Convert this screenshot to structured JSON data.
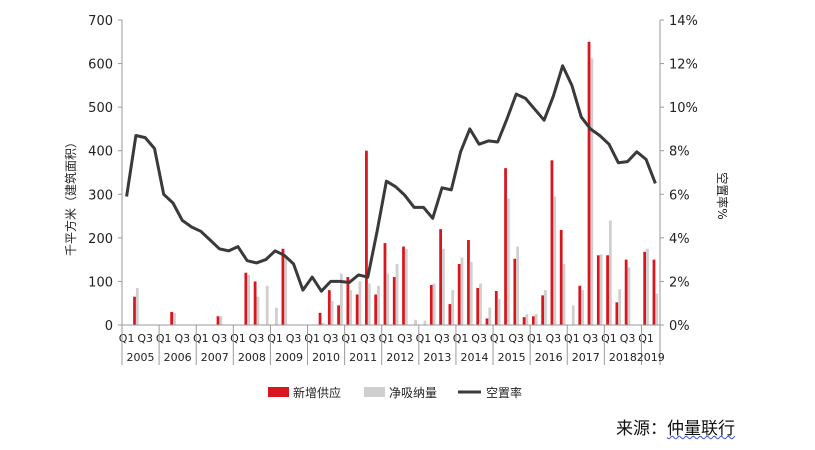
{
  "source": {
    "prefix": "来源：",
    "name": "仲量联行"
  },
  "colors": {
    "supply": "#d7161e",
    "absorption": "#cfcfcf",
    "vacancy": "#3a3a3a"
  },
  "chart_data": {
    "type": "bar",
    "title": "",
    "ylabel": "千平方米（建筑面积）",
    "y2label": "空置率%",
    "ylim": [
      0,
      700
    ],
    "y2lim": [
      0,
      14
    ],
    "yticks": [
      0,
      100,
      200,
      300,
      400,
      500,
      600,
      700
    ],
    "y2ticks": [
      "0%",
      "2%",
      "4%",
      "6%",
      "8%",
      "10%",
      "12%",
      "14%"
    ],
    "grid": false,
    "legend_position": "bottom",
    "quarter_labels": [
      "Q1",
      "Q3"
    ],
    "years": [
      "2005",
      "2006",
      "2007",
      "2008",
      "2009",
      "2010",
      "2011",
      "2012",
      "2013",
      "2014",
      "2015",
      "2016",
      "2017",
      "2018",
      "2019"
    ],
    "series": [
      {
        "name": "新增供应",
        "type": "bar",
        "values": [
          0,
          65,
          0,
          0,
          0,
          30,
          0,
          0,
          0,
          0,
          20,
          0,
          0,
          120,
          100,
          0,
          0,
          175,
          0,
          0,
          0,
          28,
          80,
          45,
          110,
          70,
          400,
          70,
          188,
          110,
          180,
          0,
          0,
          92,
          220,
          48,
          140,
          195,
          85,
          15,
          78,
          360,
          152,
          18,
          20,
          68,
          378,
          218,
          0,
          90,
          650,
          160,
          160,
          52,
          150,
          0,
          168,
          150
        ]
      },
      {
        "name": "净吸纳量",
        "type": "bar",
        "values": [
          0,
          85,
          0,
          0,
          0,
          28,
          0,
          0,
          0,
          0,
          20,
          0,
          0,
          115,
          65,
          90,
          40,
          160,
          0,
          0,
          0,
          5,
          55,
          118,
          80,
          100,
          95,
          90,
          118,
          140,
          175,
          12,
          10,
          95,
          175,
          80,
          155,
          145,
          95,
          40,
          60,
          290,
          180,
          25,
          25,
          80,
          295,
          140,
          45,
          80,
          612,
          162,
          240,
          82,
          132,
          0,
          175,
          72
        ]
      },
      {
        "name": "空置率",
        "type": "line",
        "values": [
          5.9,
          8.7,
          8.6,
          8.1,
          6.0,
          5.6,
          4.8,
          4.5,
          4.3,
          3.9,
          3.5,
          3.4,
          3.6,
          2.95,
          2.85,
          3.0,
          3.4,
          3.2,
          2.8,
          1.6,
          2.2,
          1.55,
          2.0,
          2.0,
          1.95,
          2.3,
          2.2,
          4.3,
          6.6,
          6.35,
          5.95,
          5.4,
          5.4,
          4.9,
          6.3,
          6.2,
          7.95,
          9.0,
          8.3,
          8.45,
          8.4,
          9.45,
          10.6,
          10.4,
          9.9,
          9.4,
          10.5,
          11.9,
          11.0,
          9.55,
          9.0,
          8.7,
          8.3,
          7.45,
          7.5,
          7.95,
          7.6,
          6.5
        ]
      }
    ]
  }
}
